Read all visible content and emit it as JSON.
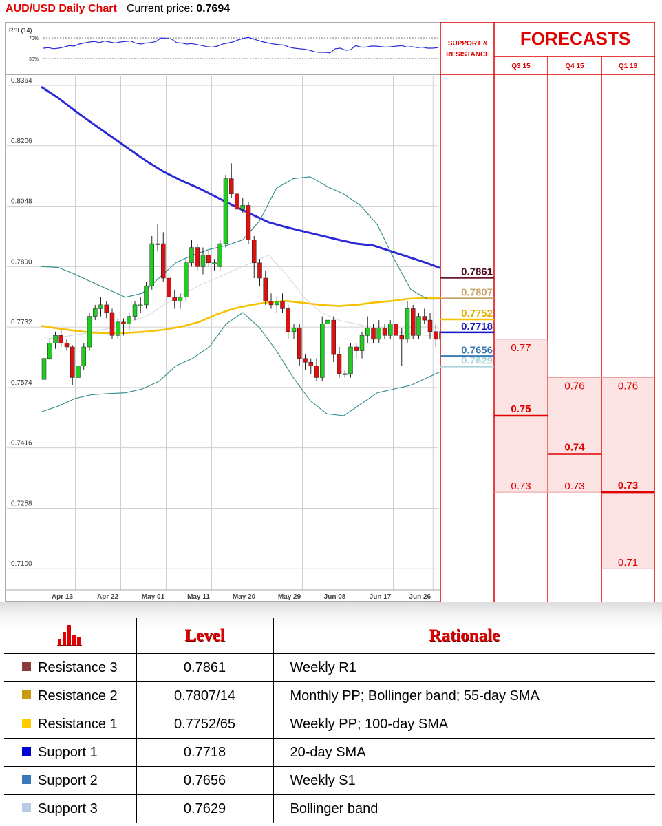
{
  "header": {
    "title": "AUD/USD Daily Chart",
    "price_label": "Current price:",
    "price_value": "0.7694"
  },
  "rsi": {
    "label": "RSI (14)",
    "levels": [
      "70%",
      "30%"
    ],
    "values": [
      50,
      51,
      49,
      50,
      52,
      55,
      54,
      58,
      60,
      62,
      63,
      61,
      64,
      62,
      60,
      62,
      63,
      64,
      60,
      58,
      60,
      61,
      63,
      70,
      69,
      68,
      61,
      60,
      58,
      59,
      57,
      55,
      53,
      52,
      54,
      58,
      60,
      62,
      66,
      69,
      71,
      68,
      65,
      62,
      60,
      58,
      57,
      56,
      52,
      50,
      49,
      48,
      46,
      43,
      42,
      42,
      41,
      49,
      50,
      46,
      47,
      55,
      52,
      52,
      54,
      54,
      53,
      52,
      53,
      54,
      55,
      52,
      53,
      51,
      52,
      50,
      50,
      51
    ]
  },
  "chart_data": {
    "type": "candlestick",
    "title": "AUD/USD Daily Chart",
    "y_ticks": [
      "0.8364",
      "0.8206",
      "0.8048",
      "0.7890",
      "0.7732",
      "0.7574",
      "0.7416",
      "0.7258",
      "0.7100"
    ],
    "ylim": [
      0.705,
      0.8364
    ],
    "x_ticks": [
      {
        "label": "Apr 13",
        "i": 2
      },
      {
        "label": "Apr 22",
        "i": 10
      },
      {
        "label": "May 01",
        "i": 18
      },
      {
        "label": "May 11",
        "i": 26
      },
      {
        "label": "May 20",
        "i": 34
      },
      {
        "label": "May 29",
        "i": 42
      },
      {
        "label": "Jun 08",
        "i": 50
      },
      {
        "label": "Jun 17",
        "i": 58
      },
      {
        "label": "Jun 26",
        "i": 65
      }
    ],
    "candles": [
      [
        0.7595,
        0.765,
        0.765,
        0.7595
      ],
      [
        0.765,
        0.769,
        0.77,
        0.7645
      ],
      [
        0.769,
        0.771,
        0.772,
        0.7675
      ],
      [
        0.771,
        0.769,
        0.7725,
        0.768
      ],
      [
        0.769,
        0.768,
        0.77,
        0.767
      ],
      [
        0.768,
        0.76,
        0.7685,
        0.758
      ],
      [
        0.76,
        0.763,
        0.764,
        0.7575
      ],
      [
        0.763,
        0.768,
        0.769,
        0.762
      ],
      [
        0.768,
        0.776,
        0.777,
        0.767
      ],
      [
        0.776,
        0.778,
        0.779,
        0.775
      ],
      [
        0.778,
        0.779,
        0.781,
        0.776
      ],
      [
        0.779,
        0.777,
        0.78,
        0.7755
      ],
      [
        0.777,
        0.771,
        0.778,
        0.77
      ],
      [
        0.771,
        0.7745,
        0.7755,
        0.77
      ],
      [
        0.7745,
        0.774,
        0.7755,
        0.771
      ],
      [
        0.774,
        0.776,
        0.777,
        0.7725
      ],
      [
        0.776,
        0.779,
        0.78,
        0.775
      ],
      [
        0.779,
        0.779,
        0.781,
        0.777
      ],
      [
        0.779,
        0.784,
        0.785,
        0.778
      ],
      [
        0.784,
        0.795,
        0.797,
        0.783
      ],
      [
        0.795,
        0.795,
        0.8,
        0.793
      ],
      [
        0.795,
        0.786,
        0.798,
        0.785
      ],
      [
        0.786,
        0.781,
        0.788,
        0.778
      ],
      [
        0.781,
        0.78,
        0.783,
        0.778
      ],
      [
        0.78,
        0.781,
        0.782,
        0.778
      ],
      [
        0.781,
        0.79,
        0.791,
        0.78
      ],
      [
        0.79,
        0.794,
        0.796,
        0.789
      ],
      [
        0.794,
        0.789,
        0.795,
        0.788
      ],
      [
        0.789,
        0.792,
        0.794,
        0.787
      ],
      [
        0.792,
        0.79,
        0.793,
        0.789
      ],
      [
        0.79,
        0.79,
        0.791,
        0.788
      ],
      [
        0.789,
        0.795,
        0.796,
        0.788
      ],
      [
        0.795,
        0.812,
        0.813,
        0.794
      ],
      [
        0.812,
        0.808,
        0.816,
        0.807
      ],
      [
        0.808,
        0.804,
        0.809,
        0.801
      ],
      [
        0.804,
        0.805,
        0.807,
        0.803
      ],
      [
        0.805,
        0.796,
        0.806,
        0.795
      ],
      [
        0.796,
        0.79,
        0.797,
        0.786
      ],
      [
        0.79,
        0.786,
        0.791,
        0.784
      ],
      [
        0.786,
        0.78,
        0.788,
        0.779
      ],
      [
        0.78,
        0.779,
        0.782,
        0.778
      ],
      [
        0.779,
        0.78,
        0.781,
        0.777
      ],
      [
        0.78,
        0.778,
        0.782,
        0.777
      ],
      [
        0.778,
        0.772,
        0.779,
        0.77
      ],
      [
        0.772,
        0.773,
        0.774,
        0.77
      ],
      [
        0.773,
        0.765,
        0.774,
        0.763
      ],
      [
        0.765,
        0.764,
        0.766,
        0.762
      ],
      [
        0.764,
        0.763,
        0.765,
        0.761
      ],
      [
        0.763,
        0.76,
        0.765,
        0.759
      ],
      [
        0.76,
        0.774,
        0.776,
        0.759
      ],
      [
        0.774,
        0.775,
        0.777,
        0.772
      ],
      [
        0.775,
        0.766,
        0.776,
        0.764
      ],
      [
        0.766,
        0.761,
        0.768,
        0.76
      ],
      [
        0.761,
        0.761,
        0.762,
        0.76
      ],
      [
        0.761,
        0.768,
        0.769,
        0.76
      ],
      [
        0.768,
        0.767,
        0.769,
        0.765
      ],
      [
        0.767,
        0.771,
        0.772,
        0.765
      ],
      [
        0.771,
        0.773,
        0.776,
        0.769
      ],
      [
        0.773,
        0.77,
        0.774,
        0.769
      ],
      [
        0.77,
        0.773,
        0.775,
        0.769
      ],
      [
        0.773,
        0.771,
        0.774,
        0.77
      ],
      [
        0.771,
        0.774,
        0.775,
        0.77
      ],
      [
        0.774,
        0.771,
        0.776,
        0.77
      ],
      [
        0.771,
        0.77,
        0.773,
        0.763
      ],
      [
        0.77,
        0.778,
        0.78,
        0.769
      ],
      [
        0.778,
        0.771,
        0.779,
        0.77
      ],
      [
        0.771,
        0.776,
        0.777,
        0.77
      ],
      [
        0.776,
        0.775,
        0.778,
        0.774
      ],
      [
        0.775,
        0.772,
        0.777,
        0.77
      ],
      [
        0.772,
        0.77,
        0.774,
        0.768
      ],
      [
        0.77,
        0.772,
        0.776,
        0.769
      ],
      [
        0.772,
        0.769,
        0.774,
        0.768
      ],
      [
        0.769,
        0.771,
        0.773,
        0.768
      ],
      [
        0.771,
        0.769,
        0.772,
        0.767
      ]
    ],
    "series": [
      {
        "name": "",
        "role": "sma200",
        "color": "#2a2ad6",
        "values": [
          0.836,
          0.833,
          0.8295,
          0.8262,
          0.823,
          0.8198,
          0.8166,
          0.8138,
          0.8115,
          0.8095,
          0.8072,
          0.8049,
          0.8027,
          0.8006,
          0.7993,
          0.7982,
          0.7971,
          0.796,
          0.795,
          0.7945,
          0.793,
          0.7915,
          0.79,
          0.7883,
          0.7867
        ]
      },
      {
        "name": "",
        "role": "sma55",
        "color": "#f5c200",
        "values": [
          0.7735,
          0.7728,
          0.7722,
          0.7717,
          0.7716,
          0.7717,
          0.772,
          0.7725,
          0.7733,
          0.7745,
          0.7765,
          0.778,
          0.779,
          0.7797,
          0.78,
          0.7795,
          0.779,
          0.7787,
          0.779,
          0.7796,
          0.78,
          0.7806,
          0.7808,
          0.7808,
          0.7805
        ]
      },
      {
        "name": "",
        "role": "bb_upper",
        "color": "#2e8b8b",
        "values": [
          0.789,
          0.7888,
          0.787,
          0.785,
          0.783,
          0.781,
          0.782,
          0.786,
          0.79,
          0.792,
          0.7935,
          0.7945,
          0.796,
          0.801,
          0.8095,
          0.812,
          0.8125,
          0.81,
          0.808,
          0.805,
          0.8,
          0.791,
          0.783,
          0.7805,
          0.7805,
          0.78
        ]
      },
      {
        "name": "",
        "role": "bb_lower",
        "color": "#2e8b8b",
        "values": [
          0.751,
          0.7525,
          0.7545,
          0.7555,
          0.7558,
          0.756,
          0.757,
          0.759,
          0.763,
          0.765,
          0.768,
          0.774,
          0.777,
          0.773,
          0.767,
          0.76,
          0.754,
          0.7505,
          0.75,
          0.753,
          0.756,
          0.757,
          0.758,
          0.76,
          0.762,
          0.7625
        ]
      },
      {
        "name": "",
        "role": "bb_mid",
        "color": "#d8d8d8",
        "values": [
          0.77,
          0.7705,
          0.7712,
          0.772,
          0.773,
          0.7745,
          0.776,
          0.779,
          0.7815,
          0.784,
          0.786,
          0.788,
          0.79,
          0.792,
          0.787,
          0.781,
          0.777,
          0.775,
          0.774,
          0.773,
          0.772,
          0.7715,
          0.771,
          0.7712,
          0.7715
        ]
      }
    ],
    "price_levels": [
      {
        "label": "0.7861",
        "value": 0.7861,
        "color": "#6b1a2e",
        "text_color": "#4a0f1f"
      },
      {
        "label": "0.7807",
        "value": 0.7807,
        "color": "#c8a56a",
        "text_color": "#c8a56a"
      },
      {
        "label": "0.7752",
        "value": 0.7752,
        "color": "#f5c200",
        "text_color": "#e0b000"
      },
      {
        "label": "0.7718",
        "value": 0.7718,
        "color": "#1515c8",
        "text_color": "#1515c8"
      },
      {
        "label": "0.7656",
        "value": 0.7656,
        "color": "#3a7ab4",
        "text_color": "#3a7ab4"
      },
      {
        "label": "0.7629",
        "value": 0.7629,
        "color": "#a8d4d8",
        "text_color": "#a8d4d8"
      }
    ]
  },
  "forecasts": {
    "title": "FORECASTS",
    "sr_label": "SUPPORT & RESISTANCE",
    "columns": [
      {
        "label": "Q3 15",
        "top": 0.77,
        "mid": 0.75,
        "bottom": 0.73,
        "top_text": "0.77",
        "mid_text": "0.75",
        "bottom_text": "0.73"
      },
      {
        "label": "Q4 15",
        "top": 0.76,
        "mid": 0.74,
        "bottom": 0.73,
        "top_text": "0.76",
        "mid_text": "0.74",
        "bottom_text": "0.73"
      },
      {
        "label": "Q1 16",
        "top": 0.76,
        "mid": 0.73,
        "bottom": 0.71,
        "top_text": "0.76",
        "mid_text": "0.73",
        "bottom_text": "0.71"
      }
    ]
  },
  "levels_table": {
    "level_header": "Level",
    "rationale_header": "Rationale",
    "rows": [
      {
        "name": "Resistance 3",
        "level": "0.7861",
        "rationale": "Weekly R1",
        "color": "#8b3a3a"
      },
      {
        "name": "Resistance 2",
        "level": "0.7807/14",
        "rationale": "Monthly PP; Bollinger band; 55-day SMA",
        "color": "#c89a10"
      },
      {
        "name": "Resistance 1",
        "level": "0.7752/65",
        "rationale": "Weekly PP; 100-day SMA",
        "color": "#ffcc00"
      },
      {
        "name": "Support 1",
        "level": "0.7718",
        "rationale": "20-day SMA",
        "color": "#0000d0"
      },
      {
        "name": "Support 2",
        "level": "0.7656",
        "rationale": "Weekly S1",
        "color": "#3a78b8"
      },
      {
        "name": "Support 3",
        "level": "0.7629",
        "rationale": "Bollinger band",
        "color": "#b8cce4"
      }
    ]
  }
}
